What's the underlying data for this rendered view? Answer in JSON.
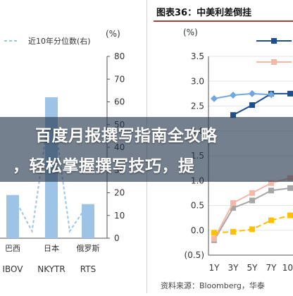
{
  "left_chart": {
    "legend_label": "近10年分位数(右)",
    "unit_label": "(%)",
    "chart_data": {
      "type": "bar",
      "categories": [
        "巴西",
        "日本",
        "俄罗斯"
      ],
      "tickers": [
        "IBOV",
        "NKYTR",
        "RTS"
      ],
      "series": [
        {
          "name": "近10年分位数(右)",
          "values": [
            19,
            62,
            15
          ]
        }
      ],
      "ylim": [
        0,
        80
      ],
      "yticks": [
        "0",
        "10",
        "20",
        "30",
        "40",
        "50",
        "60",
        "70",
        "80"
      ]
    }
  },
  "right_chart": {
    "title": "图表36：中美利差倒挂",
    "unit_label": "(%)",
    "source": "资料来源：Bloomberg，华泰",
    "colors": {
      "series1": "#1f4e8c",
      "series2": "#6fa8dc",
      "series3": "#a6a6a6",
      "series4": "#f5b8a8",
      "series5": "#ffc000"
    },
    "chart_data": {
      "type": "line",
      "x": [
        "1Y",
        "3Y",
        "5Y",
        "7Y",
        "10Y"
      ],
      "series": [
        {
          "values": [
            null,
            2.32,
            2.52,
            2.75,
            2.75
          ]
        },
        {
          "values": [
            2.65,
            2.72,
            2.75,
            2.73,
            null
          ]
        },
        {
          "values": [
            -0.2,
            0.45,
            0.6,
            0.8,
            0.85
          ]
        },
        {
          "values": [
            -0.17,
            0.55,
            0.75,
            0.95,
            1.05
          ]
        },
        {
          "values": [
            -0.05,
            -0.03,
            0.02,
            0.2,
            0.3
          ]
        }
      ],
      "ylim": [
        -0.5,
        3.5
      ],
      "yticks": [
        "(0.5)",
        "0.0",
        "0.5",
        "1.0",
        "1.5",
        "2.0",
        "2.5",
        "3.0",
        "3.5"
      ]
    }
  },
  "overlay": {
    "line1": "百度月报撰写指南全攻略",
    "line2": "，轻松掌握撰写技巧，提"
  }
}
